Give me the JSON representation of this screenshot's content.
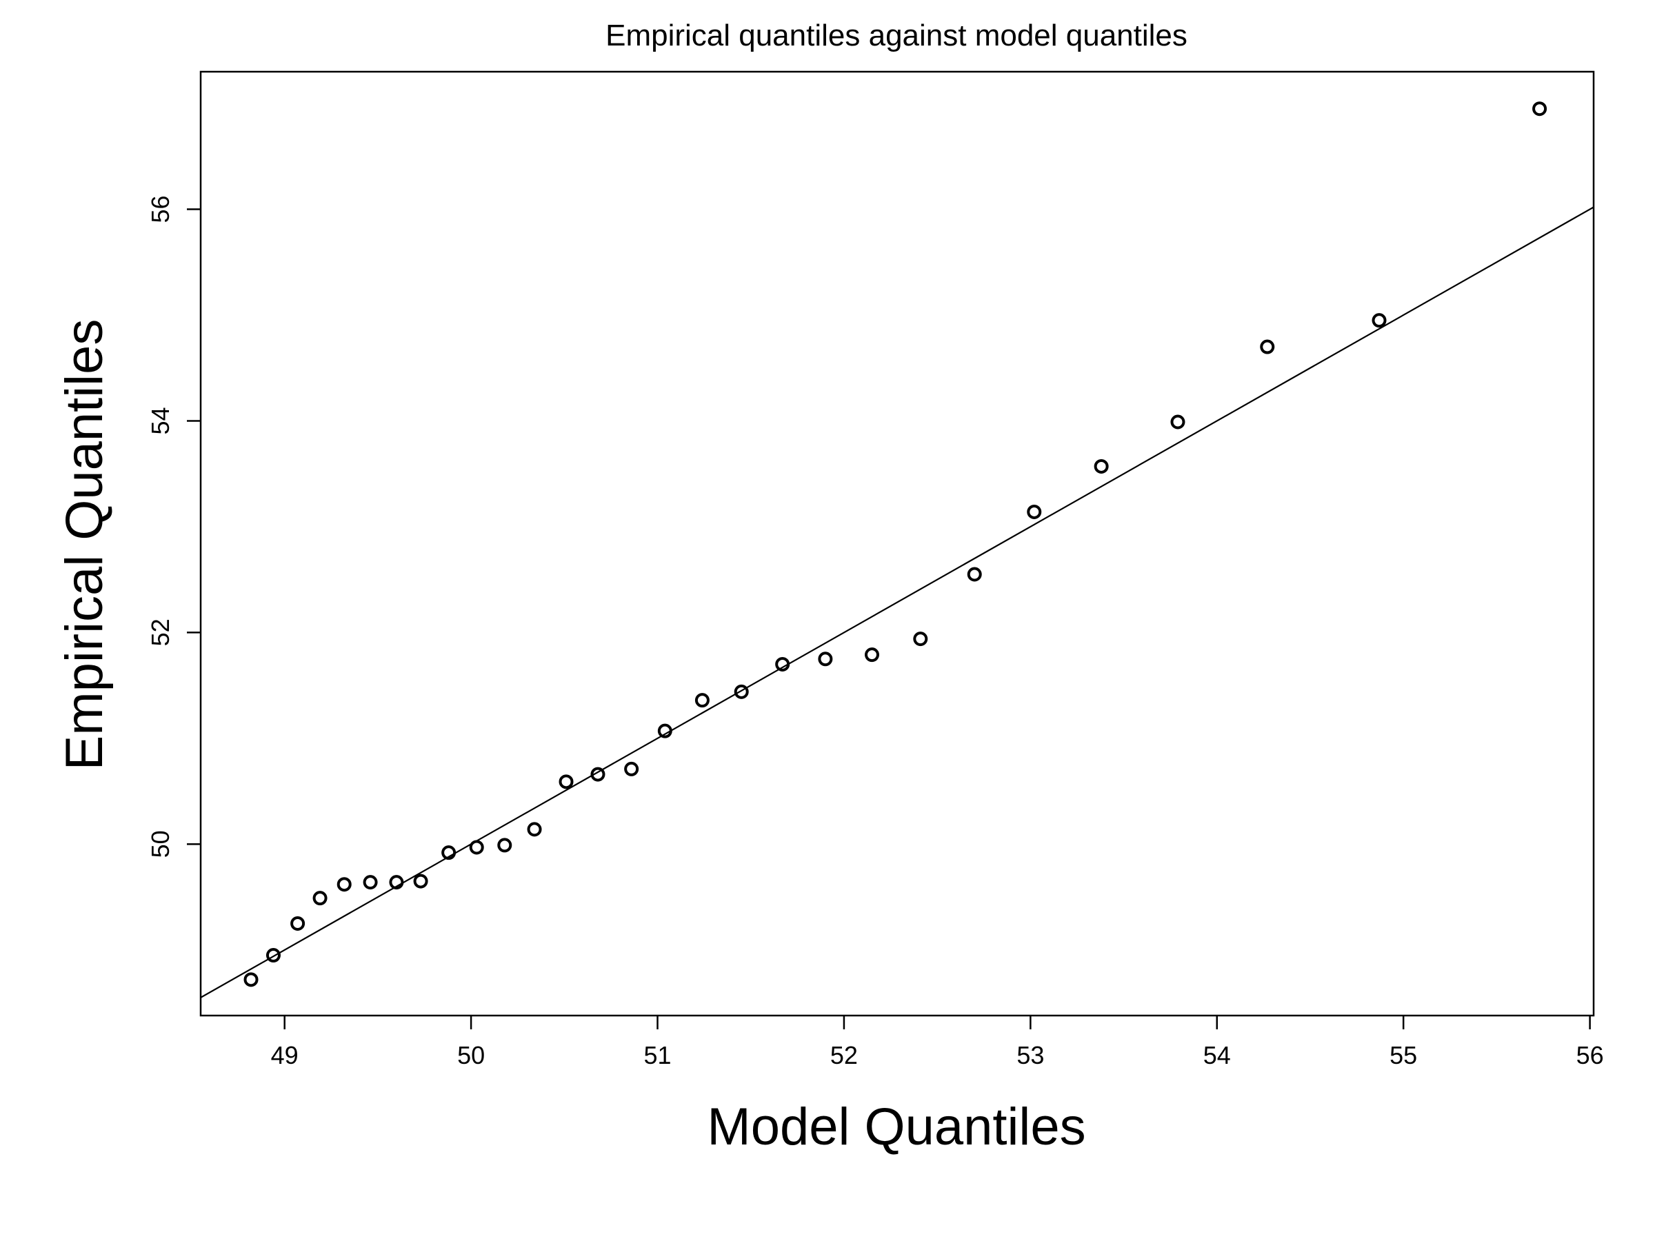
{
  "chart_data": {
    "type": "scatter",
    "title": "Empirical quantiles against model quantiles",
    "xlabel": "Model Quantiles",
    "ylabel": "Empirical Quantiles",
    "xlim": [
      48.55,
      56.02
    ],
    "ylim": [
      48.38,
      57.3
    ],
    "x_ticks": [
      49,
      50,
      51,
      52,
      53,
      54,
      55,
      56
    ],
    "y_ticks": [
      50,
      52,
      54,
      56
    ],
    "grid": false,
    "legend": "none",
    "reference_line": {
      "slope": 1.0,
      "intercept": 0.0
    },
    "points": [
      {
        "x": 48.82,
        "y": 48.72
      },
      {
        "x": 48.94,
        "y": 48.95
      },
      {
        "x": 49.07,
        "y": 49.25
      },
      {
        "x": 49.19,
        "y": 49.49
      },
      {
        "x": 49.32,
        "y": 49.62
      },
      {
        "x": 49.46,
        "y": 49.64
      },
      {
        "x": 49.6,
        "y": 49.64
      },
      {
        "x": 49.73,
        "y": 49.65
      },
      {
        "x": 49.88,
        "y": 49.92
      },
      {
        "x": 50.03,
        "y": 49.97
      },
      {
        "x": 50.18,
        "y": 49.99
      },
      {
        "x": 50.34,
        "y": 50.14
      },
      {
        "x": 50.51,
        "y": 50.59
      },
      {
        "x": 50.68,
        "y": 50.66
      },
      {
        "x": 50.86,
        "y": 50.71
      },
      {
        "x": 51.04,
        "y": 51.07
      },
      {
        "x": 51.24,
        "y": 51.36
      },
      {
        "x": 51.45,
        "y": 51.44
      },
      {
        "x": 51.67,
        "y": 51.7
      },
      {
        "x": 51.9,
        "y": 51.75
      },
      {
        "x": 52.15,
        "y": 51.79
      },
      {
        "x": 52.41,
        "y": 51.94
      },
      {
        "x": 52.7,
        "y": 52.55
      },
      {
        "x": 53.02,
        "y": 53.14
      },
      {
        "x": 53.38,
        "y": 53.57
      },
      {
        "x": 53.79,
        "y": 53.99
      },
      {
        "x": 54.27,
        "y": 54.7
      },
      {
        "x": 54.87,
        "y": 54.95
      },
      {
        "x": 55.73,
        "y": 56.95
      }
    ]
  }
}
